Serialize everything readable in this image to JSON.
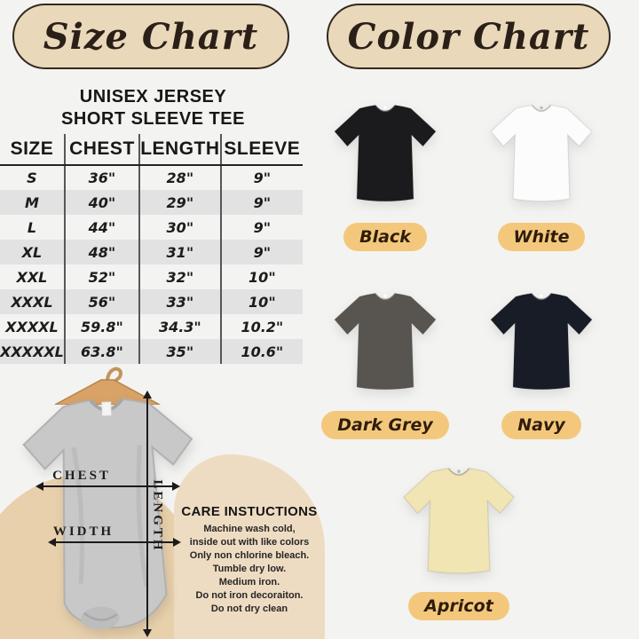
{
  "titles": {
    "size_chart": "Size Chart",
    "color_chart": "Color Chart"
  },
  "product": {
    "line1": "UNISEX JERSEY",
    "line2": "SHORT SLEEVE TEE"
  },
  "size_table": {
    "headers": [
      "SIZE",
      "CHEST",
      "LENGTH",
      "SLEEVE"
    ],
    "rows": [
      [
        "S",
        "36\"",
        "28\"",
        "9\""
      ],
      [
        "M",
        "40\"",
        "29\"",
        "9\""
      ],
      [
        "L",
        "44\"",
        "30\"",
        "9\""
      ],
      [
        "XL",
        "48\"",
        "31\"",
        "9\""
      ],
      [
        "XXL",
        "52\"",
        "32\"",
        "10\""
      ],
      [
        "XXXL",
        "56\"",
        "33\"",
        "10\""
      ],
      [
        "XXXXL",
        "59.8\"",
        "34.3\"",
        "10.2\""
      ],
      [
        "XXXXXL",
        "63.8\"",
        "35\"",
        "10.6\""
      ]
    ]
  },
  "measurement_labels": {
    "chest": "CHEST",
    "width": "WIDTH",
    "length": "LENGTH"
  },
  "care_instructions": {
    "title": "CARE INSTUCTIONS",
    "lines": [
      "Machine wash cold,",
      "inside out with like colors",
      "Only non chlorine bleach.",
      "Tumble dry low.",
      "Medium iron.",
      "Do not iron decoraiton.",
      "Do not dry clean"
    ]
  },
  "colors": [
    {
      "name": "Black",
      "hex": "#1b1b1d"
    },
    {
      "name": "White",
      "hex": "#fcfcfc"
    },
    {
      "name": "Dark Grey",
      "hex": "#585450"
    },
    {
      "name": "Navy",
      "hex": "#181c27"
    },
    {
      "name": "Apricot",
      "hex": "#f0e5b3"
    }
  ],
  "theme": {
    "background": "#f3f3f1",
    "title_pill_fill": "#e9d8ba",
    "title_pill_border": "#33291e",
    "label_pill_fill": "#f4c87c",
    "care_panel_fill": "#eedcc2",
    "arch_fill": "#e8d0ac",
    "row_stripe": "#e2e2e2",
    "hanger_wood": "#d9a266",
    "grey_shirt": "#c8c8c8"
  }
}
